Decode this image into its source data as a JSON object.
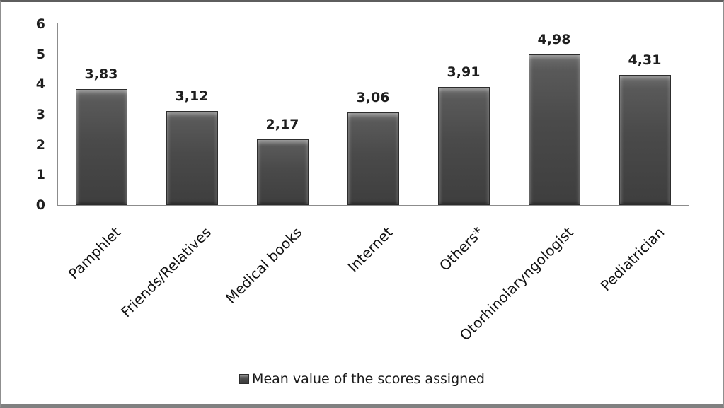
{
  "figure": {
    "background": "#ffffff",
    "frame_color": "#808080"
  },
  "chart_data": {
    "type": "bar",
    "categories": [
      "Pamphlet",
      "Friends/Relatives",
      "Medical books",
      "Internet",
      "Others*",
      "Otorhinolaryngologist",
      "Pediatrician"
    ],
    "values": [
      3.83,
      3.12,
      2.17,
      3.06,
      3.91,
      4.98,
      4.31
    ],
    "value_labels": [
      "3,83",
      "3,12",
      "2,17",
      "3,06",
      "3,91",
      "4,98",
      "4,31"
    ],
    "title": "",
    "xlabel": "",
    "ylabel": "",
    "ylim": [
      0,
      6
    ],
    "yticks": [
      0,
      1,
      2,
      3,
      4,
      5,
      6
    ],
    "grid": false,
    "decimal_separator": ",",
    "bar_color": "#4a4a4a",
    "bar_highlight": "#6e6e6e",
    "axis_color": "#8c8c8c",
    "text_color": "#1f1f1f",
    "legend": {
      "position": "bottom",
      "entries": [
        {
          "label": "Mean value of the scores assigned",
          "swatch_color": "#4a4a4a"
        }
      ]
    }
  }
}
